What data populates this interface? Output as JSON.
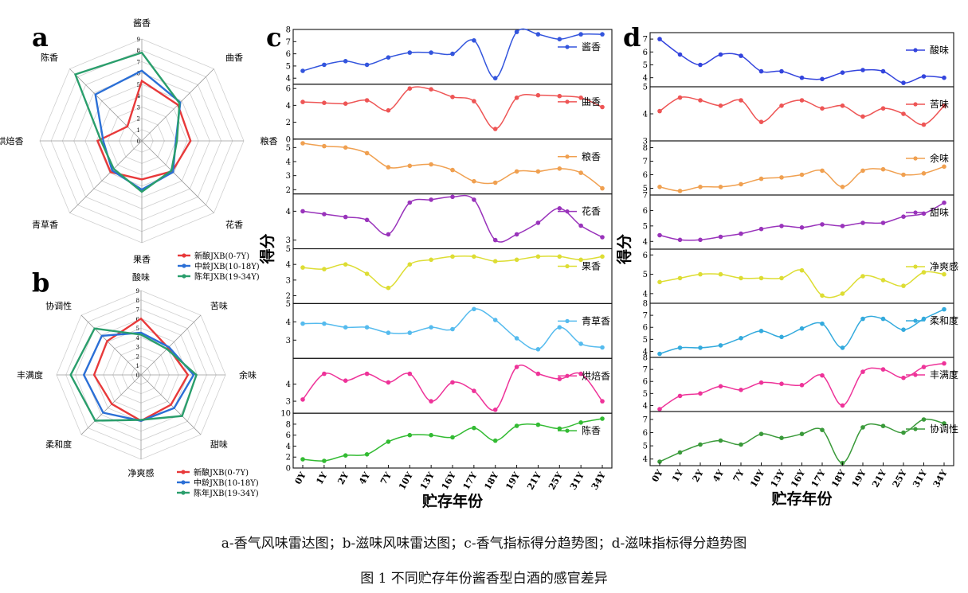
{
  "caption": {
    "subtitle": "a-香气风味雷达图；b-滋味风味雷达图；c-香气指标得分趋势图；d-滋味指标得分趋势图",
    "figure_title": "图 1 不同贮存年份酱香型白酒的感官差异"
  },
  "chart_data": [
    {
      "panel": "a",
      "type": "radar",
      "axes": [
        "酱香",
        "曲香",
        "粮香",
        "花香",
        "果香",
        "青草香",
        "烘焙香",
        "陈香"
      ],
      "range": [
        0,
        9
      ],
      "ticks": [
        0,
        1,
        2,
        3,
        4,
        5,
        6,
        7,
        8,
        9
      ],
      "legend": "bottom-right",
      "series": [
        {
          "name": "新酿JXB(0-7Y)",
          "color": "#e8393a",
          "values": [
            5.3,
            4.5,
            4.3,
            3.8,
            3.4,
            3.9,
            3.9,
            1.8
          ]
        },
        {
          "name": "中龄JXB(10-18Y)",
          "color": "#2b6fd6",
          "values": [
            6.2,
            4.8,
            3.0,
            3.9,
            4.3,
            3.7,
            3.4,
            5.8
          ]
        },
        {
          "name": "陈年JXB(19-34Y)",
          "color": "#2a9e6c",
          "values": [
            7.8,
            4.7,
            3.1,
            3.7,
            4.5,
            3.5,
            3.6,
            8.3
          ]
        }
      ]
    },
    {
      "panel": "b",
      "type": "radar",
      "axes": [
        "酸味",
        "苦味",
        "余味",
        "甜味",
        "净爽感",
        "柔和度",
        "丰满度",
        "协调性"
      ],
      "range": [
        0,
        9
      ],
      "ticks": [
        0,
        1,
        2,
        3,
        4,
        5,
        6,
        7,
        8,
        9
      ],
      "legend": "bottom-right",
      "series": [
        {
          "name": "新酿JXB(0-7Y)",
          "color": "#e8393a",
          "values": [
            6.0,
            4.1,
            5.0,
            4.5,
            4.9,
            4.4,
            5.0,
            5.1
          ]
        },
        {
          "name": "中龄JXB(10-18Y)",
          "color": "#2b6fd6",
          "values": [
            4.5,
            4.2,
            5.6,
            5.0,
            4.9,
            5.7,
            6.1,
            5.9
          ]
        },
        {
          "name": "陈年JXB(19-34Y)",
          "color": "#2a9e6c",
          "values": [
            4.3,
            3.9,
            5.9,
            6.2,
            4.8,
            6.9,
            7.5,
            7.0
          ]
        }
      ]
    },
    {
      "panel": "c",
      "type": "line",
      "x": [
        "0Y",
        "1Y",
        "2Y",
        "4Y",
        "7Y",
        "10Y",
        "13Y",
        "16Y",
        "17Y",
        "18Y",
        "19Y",
        "21Y",
        "25Y",
        "31Y",
        "34Y"
      ],
      "xlabel": "贮存年份",
      "ylabel": "得分",
      "series": [
        {
          "name": "酱香",
          "color": "#3355dd",
          "ylim": [
            3.5,
            8
          ],
          "ticks": [
            4,
            5,
            6,
            7,
            8
          ],
          "values": [
            4.6,
            5.1,
            5.4,
            5.1,
            5.7,
            6.1,
            6.1,
            6.0,
            7.1,
            4.0,
            7.8,
            7.6,
            7.2,
            7.6,
            7.6
          ]
        },
        {
          "name": "曲香",
          "color": "#ee5555",
          "ylim": [
            0,
            6.5
          ],
          "ticks": [
            0,
            2,
            4,
            6
          ],
          "values": [
            4.4,
            4.3,
            4.2,
            4.6,
            3.4,
            6.0,
            5.9,
            5.0,
            4.5,
            1.2,
            4.9,
            5.2,
            5.1,
            4.9,
            3.8
          ]
        },
        {
          "name": "粮香",
          "color": "#f0a050",
          "ylim": [
            1.7,
            5.6
          ],
          "ticks": [
            2,
            3,
            4,
            5
          ],
          "values": [
            5.3,
            5.1,
            5.0,
            4.6,
            3.6,
            3.7,
            3.8,
            3.4,
            2.6,
            2.5,
            3.3,
            3.3,
            3.5,
            3.2,
            2.1
          ]
        },
        {
          "name": "花香",
          "color": "#9933bb",
          "ylim": [
            2.7,
            4.6
          ],
          "ticks": [
            3,
            4
          ],
          "values": [
            4.0,
            3.9,
            3.8,
            3.7,
            3.2,
            4.3,
            4.4,
            4.5,
            4.4,
            3.0,
            3.2,
            3.6,
            4.1,
            3.5,
            3.1
          ]
        },
        {
          "name": "果香",
          "color": "#dddd33",
          "ylim": [
            1.5,
            5
          ],
          "ticks": [
            2,
            3,
            4,
            5
          ],
          "values": [
            3.8,
            3.7,
            4.0,
            3.4,
            2.5,
            4.0,
            4.3,
            4.5,
            4.5,
            4.2,
            4.3,
            4.5,
            4.5,
            4.3,
            4.5
          ]
        },
        {
          "name": "青草香",
          "color": "#55bbee",
          "ylim": [
            2,
            5
          ],
          "ticks": [
            3,
            4,
            5
          ],
          "values": [
            3.9,
            3.9,
            3.7,
            3.7,
            3.4,
            3.4,
            3.7,
            3.6,
            4.7,
            4.1,
            3.1,
            2.5,
            3.7,
            2.8,
            2.6
          ]
        },
        {
          "name": "烘焙香",
          "color": "#ee3399",
          "ylim": [
            2.3,
            5.5
          ],
          "ticks": [
            3,
            4
          ],
          "values": [
            3.1,
            4.6,
            4.2,
            4.6,
            4.1,
            4.6,
            3.0,
            4.1,
            3.6,
            2.5,
            5.0,
            4.6,
            4.3,
            4.6,
            3.0
          ]
        },
        {
          "name": "陈香",
          "color": "#33bb33",
          "ylim": [
            0,
            10
          ],
          "ticks": [
            0,
            2,
            4,
            6,
            8,
            10
          ],
          "values": [
            1.6,
            1.3,
            2.3,
            2.5,
            4.8,
            6.0,
            6.0,
            5.6,
            7.3,
            5.0,
            7.7,
            7.9,
            7.2,
            8.3,
            9.0
          ]
        }
      ]
    },
    {
      "panel": "d",
      "type": "line",
      "x": [
        "0Y",
        "1Y",
        "2Y",
        "4Y",
        "7Y",
        "10Y",
        "13Y",
        "16Y",
        "17Y",
        "18Y",
        "19Y",
        "21Y",
        "25Y",
        "31Y",
        "34Y"
      ],
      "xlabel": "贮存年份",
      "ylabel": "得分",
      "series": [
        {
          "name": "酸味",
          "color": "#3344dd",
          "ylim": [
            3.3,
            7.5
          ],
          "ticks": [
            4,
            5,
            6,
            7
          ],
          "values": [
            7.0,
            5.8,
            5.0,
            5.8,
            5.7,
            4.5,
            4.5,
            4.0,
            3.9,
            4.4,
            4.6,
            4.5,
            3.6,
            4.1,
            4.0
          ]
        },
        {
          "name": "苦味",
          "color": "#ee5555",
          "ylim": [
            3,
            5
          ],
          "ticks": [
            3,
            4,
            5
          ],
          "values": [
            4.1,
            4.6,
            4.5,
            4.3,
            4.5,
            3.7,
            4.3,
            4.5,
            4.2,
            4.3,
            3.9,
            4.2,
            4.0,
            3.6,
            4.3
          ]
        },
        {
          "name": "余味",
          "color": "#f0a050",
          "ylim": [
            4.5,
            8.5
          ],
          "ticks": [
            5,
            6,
            7,
            8
          ],
          "values": [
            5.1,
            4.8,
            5.1,
            5.1,
            5.3,
            5.7,
            5.8,
            6.0,
            6.3,
            5.1,
            6.3,
            6.4,
            6.0,
            6.1,
            6.6
          ]
        },
        {
          "name": "甜味",
          "color": "#9933bb",
          "ylim": [
            3.5,
            7
          ],
          "ticks": [
            4,
            5,
            6,
            7
          ],
          "values": [
            4.4,
            4.1,
            4.1,
            4.3,
            4.5,
            4.8,
            5.0,
            4.9,
            5.1,
            5.0,
            5.2,
            5.2,
            5.6,
            5.8,
            6.5
          ]
        },
        {
          "name": "净爽感",
          "color": "#dddd33",
          "ylim": [
            3.5,
            6.3
          ],
          "ticks": [
            4,
            5,
            6
          ],
          "values": [
            4.6,
            4.8,
            5.0,
            5.0,
            4.8,
            4.8,
            4.8,
            5.2,
            3.9,
            4.0,
            4.9,
            4.7,
            4.4,
            5.1,
            5.0
          ]
        },
        {
          "name": "柔和度",
          "color": "#33aadd",
          "ylim": [
            3.5,
            8
          ],
          "ticks": [
            4,
            5,
            6,
            7,
            8
          ],
          "values": [
            3.8,
            4.3,
            4.3,
            4.5,
            5.1,
            5.7,
            5.2,
            5.9,
            6.3,
            4.3,
            6.7,
            6.7,
            5.8,
            6.7,
            7.5
          ]
        },
        {
          "name": "丰满度",
          "color": "#ee3399",
          "ylim": [
            3.5,
            8
          ],
          "ticks": [
            4,
            5,
            6,
            7,
            8
          ],
          "values": [
            3.7,
            4.8,
            5.0,
            5.6,
            5.3,
            5.9,
            5.8,
            5.7,
            6.5,
            4.0,
            6.8,
            7.0,
            6.3,
            7.2,
            7.5
          ]
        },
        {
          "name": "协调性",
          "color": "#3a9a3a",
          "ylim": [
            3.5,
            7.6
          ],
          "ticks": [
            4,
            5,
            6,
            7
          ],
          "values": [
            3.8,
            4.5,
            5.1,
            5.4,
            5.1,
            5.9,
            5.6,
            5.9,
            6.2,
            3.7,
            6.4,
            6.5,
            6.0,
            7.0,
            6.7
          ]
        }
      ]
    }
  ]
}
